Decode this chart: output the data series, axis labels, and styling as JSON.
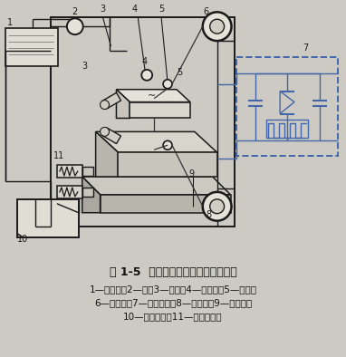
{
  "title": "图 1-5  中走丝电火花线切割加工原理",
  "caption_line1": "1—工作液；2—泵；3—喷嘴；4—导向器；5—工件；",
  "caption_line2": "6—运丝筒；7—脉冲电源；8—电极丝；9—工作台；",
  "caption_line3": "10—数控装置；11—步进电动机",
  "bg_color": "#cccac2",
  "line_color": "#1a1a1a",
  "dashed_box_color": "#4466aa"
}
